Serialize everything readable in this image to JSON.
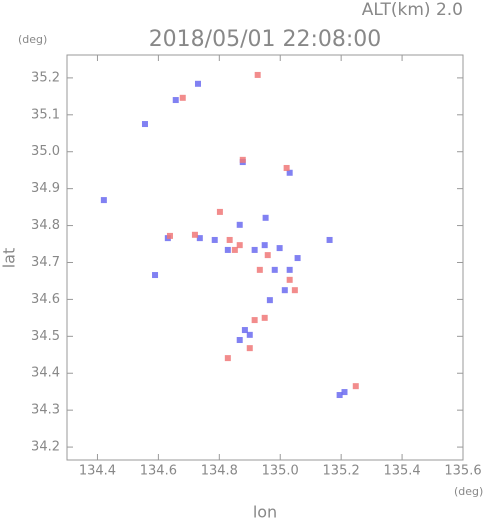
{
  "chart_data": {
    "type": "scatter",
    "title": "2018/05/01 22:08:00",
    "subtitle": "ALT(km) 2.0",
    "y_unit": "(deg)",
    "x_unit": "(deg)",
    "xlabel": "lon",
    "ylabel": "lat",
    "xlim": [
      134.3,
      135.6
    ],
    "ylim": [
      34.165,
      35.262
    ],
    "xticks": [
      134.4,
      134.6,
      134.8,
      {
        "value": 135,
        "label": "135.0"
      },
      135.2,
      135.4,
      135.6
    ],
    "yticks": [
      34.2,
      34.3,
      34.4,
      34.5,
      34.6,
      34.7,
      34.8,
      34.9,
      {
        "value": 35,
        "label": "35.0"
      },
      35.1,
      35.2
    ],
    "series": [
      {
        "color": "#6b6bf0",
        "x": [
          134.556,
          134.73,
          134.657,
          134.877,
          135.031,
          134.952,
          134.631,
          134.736,
          134.785,
          134.828,
          134.916,
          134.949,
          134.998,
          134.982,
          135.031,
          135.015,
          134.966,
          134.884,
          134.867,
          134.9,
          135.195,
          135.211,
          135.162,
          135.057,
          134.589,
          134.867,
          134.421
        ],
        "values": [
          35.075,
          35.184,
          35.14,
          34.972,
          34.943,
          34.821,
          34.766,
          34.766,
          34.761,
          34.734,
          34.734,
          34.747,
          34.739,
          34.68,
          34.68,
          34.625,
          34.598,
          34.517,
          34.49,
          34.504,
          34.341,
          34.349,
          34.761,
          34.712,
          34.666,
          34.802,
          34.869
        ]
      },
      {
        "color": "#f07878",
        "x": [
          134.926,
          134.68,
          134.877,
          135.021,
          134.638,
          134.72,
          134.802,
          134.834,
          134.867,
          134.933,
          134.959,
          135.031,
          135.048,
          134.916,
          134.949,
          134.828,
          135.248,
          134.9,
          134.851
        ],
        "values": [
          35.208,
          35.146,
          34.978,
          34.956,
          34.772,
          34.775,
          34.837,
          34.761,
          34.747,
          34.68,
          34.72,
          34.653,
          34.625,
          34.544,
          34.55,
          34.441,
          34.365,
          34.468,
          34.734
        ]
      }
    ]
  }
}
